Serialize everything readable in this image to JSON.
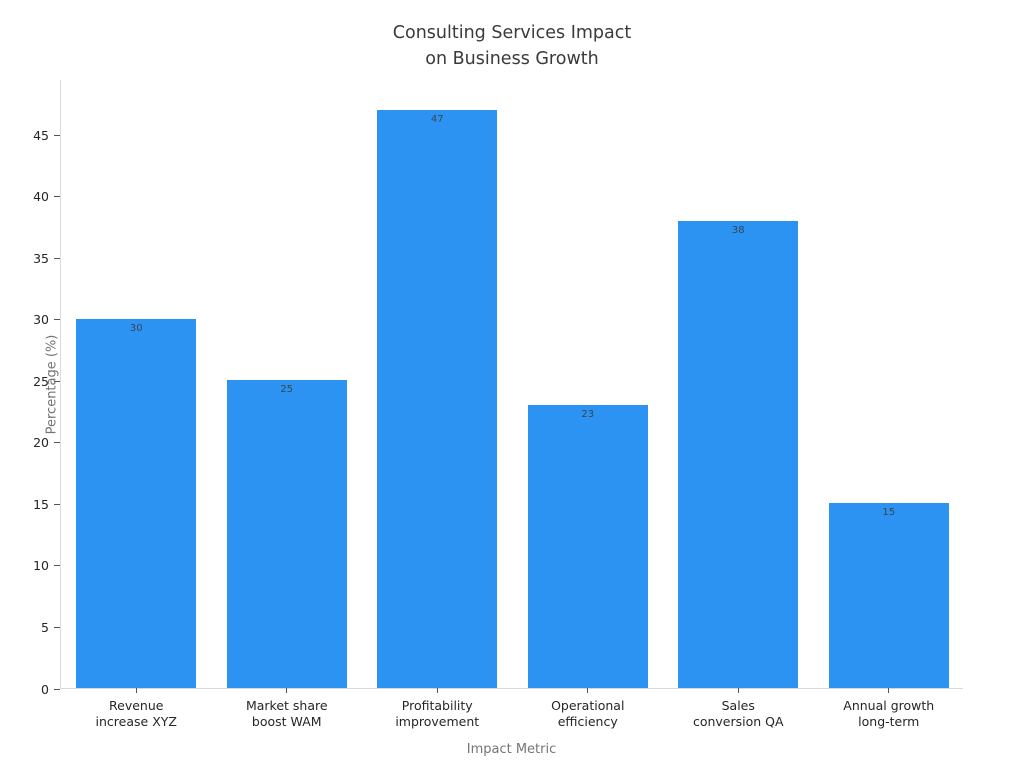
{
  "chart_data": {
    "type": "bar",
    "title": "Consulting Services Impact\non Business Growth",
    "xlabel": "Impact Metric",
    "ylabel": "Percentage (%)",
    "categories": [
      "Revenue\nincrease XYZ",
      "Market share\nboost WAM",
      "Profitability\nimprovement",
      "Operational\nefficiency",
      "Sales\nconversion QA",
      "Annual growth\nlong-term"
    ],
    "values": [
      30,
      25,
      47,
      23,
      38,
      15
    ],
    "yticks": [
      0,
      5,
      10,
      15,
      20,
      25,
      30,
      35,
      40,
      45
    ],
    "ylim": [
      0,
      49.5
    ],
    "grid": false,
    "legend_position": "none",
    "bar_width_fraction": 0.8,
    "colors": {
      "bar": "#2D93F2",
      "value_label": "#37474F",
      "tick_label": "#262626",
      "tick_mark": "#555555",
      "axis_label": "#757575",
      "spine": "#D9D9D9",
      "title": "#3A3A3A",
      "background": "#FFFFFF"
    }
  }
}
